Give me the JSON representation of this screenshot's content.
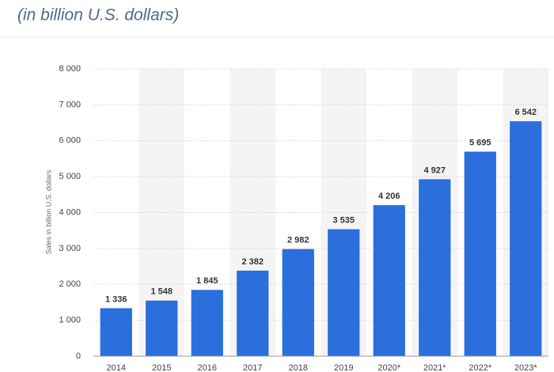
{
  "chart_data": {
    "type": "bar",
    "subtitle": "(in billion U.S. dollars)",
    "y_label": "Sales in billion U.S. dollars",
    "categories": [
      "2014",
      "2015",
      "2016",
      "2017",
      "2018",
      "2019",
      "2020*",
      "2021*",
      "2022*",
      "2023*"
    ],
    "values": [
      1336,
      1548,
      1845,
      2382,
      2982,
      3535,
      4206,
      4927,
      5695,
      6542
    ],
    "value_labels": [
      "1 336",
      "1 548",
      "1 845",
      "2 382",
      "2 982",
      "3 535",
      "4 206",
      "4 927",
      "5 695",
      "6 542"
    ],
    "color": "#2a6fdb",
    "ylim": [
      0,
      8000
    ],
    "yticks": [
      0,
      {
        "value": 1000,
        "label": "1 000"
      },
      {
        "value": 2000,
        "label": "2 000"
      },
      {
        "value": 3000,
        "label": "3 000"
      },
      {
        "value": 4000,
        "label": "4 000"
      },
      {
        "value": 5000,
        "label": "5 000"
      },
      {
        "value": 6000,
        "label": "6 000"
      },
      {
        "value": 7000,
        "label": "7 000"
      },
      {
        "value": 8000,
        "label": "8 000"
      }
    ],
    "grid": true
  }
}
